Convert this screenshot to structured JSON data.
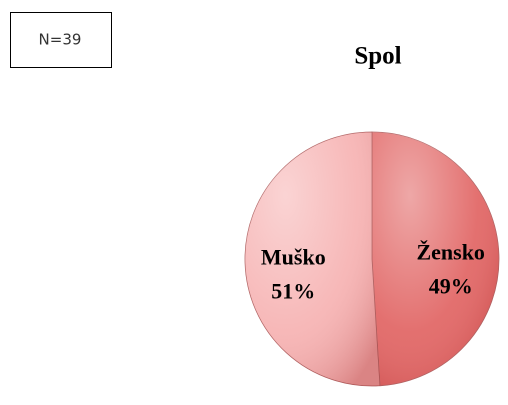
{
  "chart_data": {
    "type": "pie",
    "title": "Spol",
    "annotation": "N=39",
    "categories": [
      "Žensko",
      "Muško"
    ],
    "values": [
      49,
      51
    ],
    "value_labels": [
      "49%",
      "51%"
    ],
    "colors": [
      "#e0605f",
      "#f6b0b0"
    ]
  }
}
